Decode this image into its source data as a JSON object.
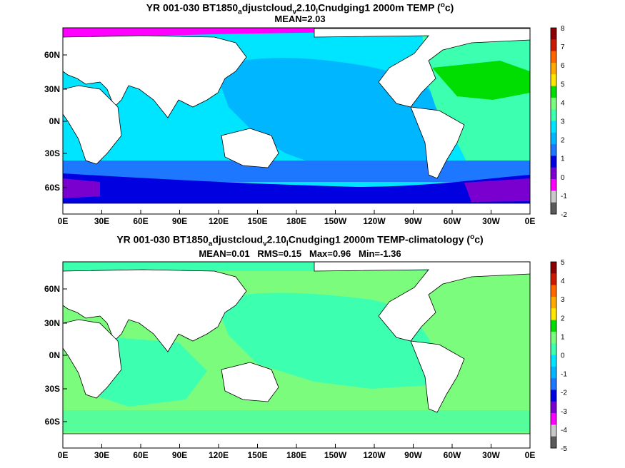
{
  "panels": [
    {
      "title_parts": [
        "YR 001-030 BT1850",
        "a",
        "djustcloud",
        "v",
        "2.10",
        "l",
        "Cnudging1 2000m TEMP (",
        "o",
        "c)"
      ],
      "stats": "MEAN=2.03",
      "lat_labels": [
        "60N",
        "30N",
        "0N",
        "30S",
        "60S"
      ],
      "lon_labels": [
        "0E",
        "30E",
        "60E",
        "90E",
        "120E",
        "150E",
        "180E",
        "150W",
        "120W",
        "90W",
        "60W",
        "30W",
        "0E"
      ],
      "colorbar_labels": [
        "8",
        "7",
        "6",
        "5",
        "4",
        "3",
        "2",
        "1",
        "0",
        "-1",
        "-2"
      ],
      "colorbar_colors": [
        "#8b0000",
        "#cc1a00",
        "#ff6600",
        "#ffaa00",
        "#ffe600",
        "#00dd00",
        "#7cfc7c",
        "#3dffb0",
        "#00e5ff",
        "#00b7ff",
        "#1e78ff",
        "#0000e0",
        "#7a00d0",
        "#ff00ff",
        "#c8c8c8",
        "#5a5a5a"
      ]
    },
    {
      "title_parts": [
        "YR 001-030 BT1850",
        "a",
        "djustcloud",
        "v",
        "2.10",
        "l",
        "Cnudging1 2000m TEMP-climatology (",
        "o",
        "c)"
      ],
      "stats": "MEAN=0.01   RMS=0.15   Max=0.96   Min=-1.36",
      "lat_labels": [
        "60N",
        "30N",
        "0N",
        "30S",
        "60S"
      ],
      "lon_labels": [
        "0E",
        "30E",
        "60E",
        "90E",
        "120E",
        "150E",
        "180E",
        "150W",
        "120W",
        "90W",
        "60W",
        "30W",
        "0E"
      ],
      "colorbar_labels": [
        "5",
        "4",
        "3",
        "2",
        "1",
        "0",
        "-1",
        "-2",
        "-3",
        "-4",
        "-5"
      ],
      "colorbar_colors": [
        "#8b0000",
        "#cc1a00",
        "#ff6600",
        "#ffaa00",
        "#ffe600",
        "#00dd00",
        "#7cfc7c",
        "#3dffb0",
        "#00e5ff",
        "#00b7ff",
        "#1e78ff",
        "#0000e0",
        "#7a00d0",
        "#ff00ff",
        "#c8c8c8",
        "#5a5a5a"
      ]
    }
  ]
}
